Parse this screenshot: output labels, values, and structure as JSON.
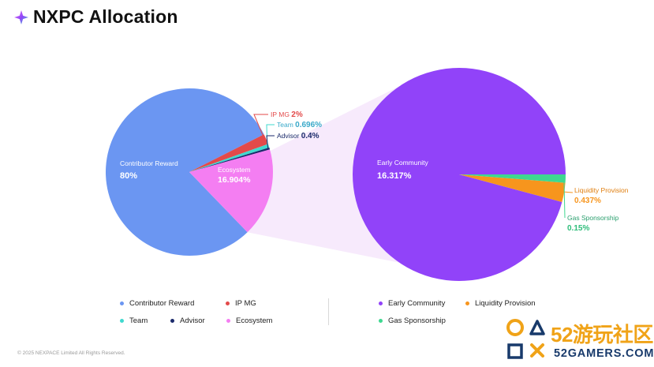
{
  "header": {
    "title": "NXPC Allocation",
    "icon": "sparkle-icon"
  },
  "chart_data": [
    {
      "type": "pie",
      "slices": [
        {
          "name": "Contributor Reward",
          "value_label": "80%",
          "value": 80,
          "color": "#6b96f2"
        },
        {
          "name": "IP MG",
          "value_label": "2%",
          "value": 2,
          "color": "#e34a4a"
        },
        {
          "name": "Team",
          "value_label": "0.696%",
          "value": 0.696,
          "color": "#3fd9cf"
        },
        {
          "name": "Advisor",
          "value_label": "0.4%",
          "value": 0.4,
          "color": "#1b2a6b"
        },
        {
          "name": "Ecosystem",
          "value_label": "16.904%",
          "value": 16.904,
          "color": "#f47ef2"
        }
      ]
    },
    {
      "type": "pie",
      "slices": [
        {
          "name": "Early Community",
          "value_label": "16.317%",
          "value": 16.317,
          "color": "#9143f9"
        },
        {
          "name": "Liquidity Provision",
          "value_label": "0.437%",
          "value": 0.437,
          "color": "#f7951d"
        },
        {
          "name": "Gas Sponsorship",
          "value_label": "0.15%",
          "value": 0.15,
          "color": "#3ed890"
        }
      ]
    }
  ],
  "legend": {
    "left": [
      {
        "name": "Contributor Reward",
        "color": "#6b96f2"
      },
      {
        "name": "IP MG",
        "color": "#e34a4a"
      },
      {
        "name": "Team",
        "color": "#3fd9cf"
      },
      {
        "name": "Advisor",
        "color": "#1b2a6b"
      },
      {
        "name": "Ecosystem",
        "color": "#f47ef2"
      }
    ],
    "right": [
      {
        "name": "Early Community",
        "color": "#9143f9"
      },
      {
        "name": "Liquidity Provision",
        "color": "#f7951d"
      },
      {
        "name": "Gas Sponsorship",
        "color": "#3ed890"
      }
    ]
  },
  "footer": {
    "copyright": "© 2025 NEXPACE Limited All Rights Reserved."
  },
  "watermark": {
    "number": "52",
    "cn_text": "游玩社区",
    "site": "52GAMERS.COM",
    "icon": "game-buttons-icon"
  }
}
